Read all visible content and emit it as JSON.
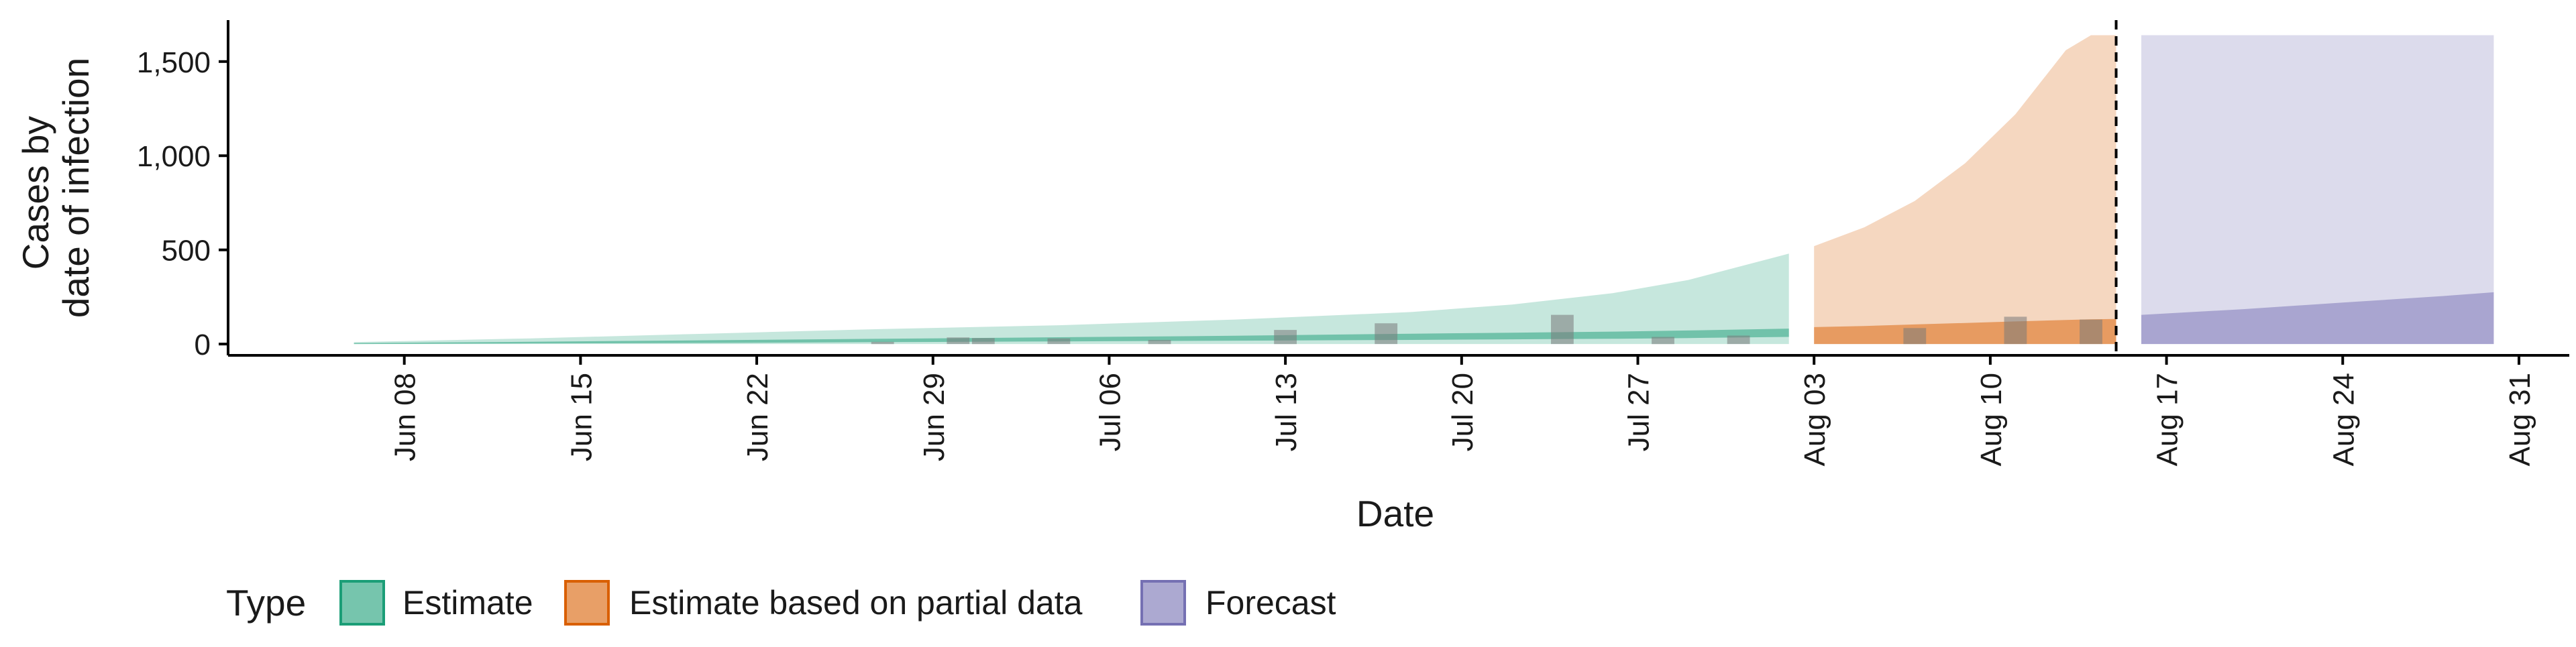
{
  "chart_data": {
    "type": "area",
    "title": "",
    "xlabel": "Date",
    "ylabel_lines": [
      "Cases by",
      "date of infection"
    ],
    "x_range": [
      "2020-06-01",
      "2020-09-02"
    ],
    "ylim": [
      -60,
      1720
    ],
    "y_ticks": [
      0,
      500,
      1000,
      1500
    ],
    "y_tick_labels": [
      "0",
      "500",
      "1,000",
      "1,500"
    ],
    "x_ticks": [
      "2020-06-08",
      "2020-06-15",
      "2020-06-22",
      "2020-06-29",
      "2020-07-06",
      "2020-07-13",
      "2020-07-20",
      "2020-07-27",
      "2020-08-03",
      "2020-08-10",
      "2020-08-17",
      "2020-08-24",
      "2020-08-31"
    ],
    "x_tick_labels": [
      "Jun 08",
      "Jun 15",
      "Jun 22",
      "Jun 29",
      "Jul 06",
      "Jul 13",
      "Jul 20",
      "Jul 27",
      "Aug 03",
      "Aug 10",
      "Aug 17",
      "Aug 24",
      "Aug 31"
    ],
    "grid": false,
    "legend": {
      "title": "Type",
      "position": "bottom",
      "entries": [
        {
          "label": "Estimate",
          "fill": "#1b9e77",
          "border": "#1b9e77"
        },
        {
          "label": "Estimate based on partial data",
          "fill": "#d95f02",
          "border": "#d95f02"
        },
        {
          "label": "Forecast",
          "fill": "#7570b3",
          "border": "#7570b3"
        }
      ]
    },
    "vline_date": "2020-08-15",
    "series": [
      {
        "name": "Estimate",
        "color": "#1b9e77",
        "x": [
          "2020-06-06",
          "2020-06-13",
          "2020-06-20",
          "2020-06-27",
          "2020-07-04",
          "2020-07-11",
          "2020-07-18",
          "2020-07-22",
          "2020-07-26",
          "2020-07-29",
          "2020-08-02"
        ],
        "outer_lower": [
          0,
          0,
          0,
          0,
          0,
          0,
          0,
          0,
          0,
          0,
          0
        ],
        "outer_upper": [
          10,
          30,
          55,
          80,
          100,
          130,
          170,
          210,
          270,
          340,
          480
        ],
        "inner_lower": [
          0,
          3,
          6,
          10,
          14,
          18,
          22,
          25,
          28,
          32,
          38
        ],
        "inner_upper": [
          5,
          12,
          20,
          28,
          36,
          44,
          55,
          60,
          66,
          72,
          82
        ]
      },
      {
        "name": "Estimate based on partial data",
        "color": "#d95f02",
        "x": [
          "2020-08-03",
          "2020-08-05",
          "2020-08-07",
          "2020-08-09",
          "2020-08-11",
          "2020-08-13",
          "2020-08-14",
          "2020-08-15"
        ],
        "outer_lower": [
          0,
          0,
          0,
          0,
          0,
          0,
          0,
          0
        ],
        "outer_upper": [
          520,
          620,
          760,
          960,
          1220,
          1560,
          1640,
          1640
        ],
        "inner_lower": [
          0,
          0,
          0,
          0,
          0,
          0,
          0,
          0
        ],
        "inner_upper": [
          90,
          96,
          104,
          112,
          120,
          128,
          131,
          133
        ]
      },
      {
        "name": "Forecast",
        "color": "#7570b3",
        "x": [
          "2020-08-16",
          "2020-08-20",
          "2020-08-24",
          "2020-08-28",
          "2020-08-30"
        ],
        "outer_lower": [
          0,
          0,
          0,
          0,
          0
        ],
        "outer_upper": [
          1640,
          1640,
          1640,
          1640,
          1640
        ],
        "inner_lower": [
          0,
          0,
          0,
          0,
          0
        ],
        "inner_upper": [
          155,
          185,
          220,
          255,
          275
        ]
      }
    ],
    "reported_cases": {
      "color": "#7a7a7a",
      "x": [
        "2020-06-27",
        "2020-06-30",
        "2020-07-01",
        "2020-07-04",
        "2020-07-08",
        "2020-07-13",
        "2020-07-17",
        "2020-07-24",
        "2020-07-28",
        "2020-07-31",
        "2020-08-07",
        "2020-08-11",
        "2020-08-14"
      ],
      "values": [
        12,
        35,
        32,
        30,
        22,
        75,
        110,
        155,
        38,
        45,
        85,
        145,
        130
      ]
    }
  }
}
